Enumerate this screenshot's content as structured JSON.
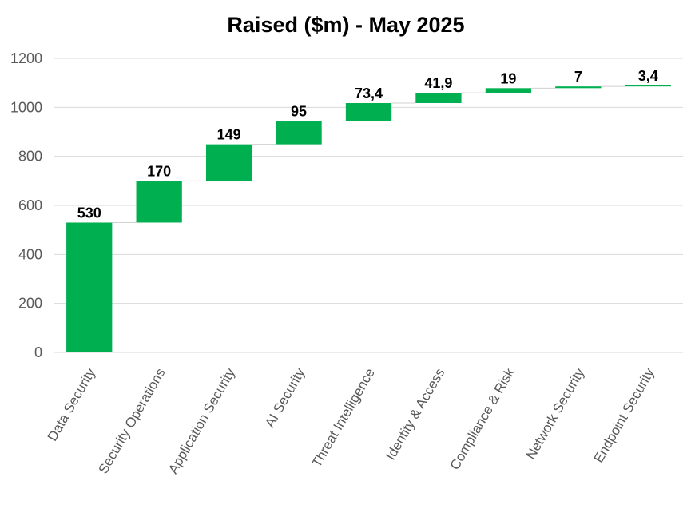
{
  "chart_data": {
    "type": "bar",
    "subtype": "waterfall",
    "title": "Raised ($m) - May 2025",
    "xlabel": "",
    "ylabel": "",
    "ylim": [
      0,
      1200
    ],
    "yticks": [
      0,
      200,
      400,
      600,
      800,
      1000,
      1200
    ],
    "grid": true,
    "legend": "none",
    "bar_color": "#00b050",
    "categories": [
      "Data Security",
      "Security Operations",
      "Application Security",
      "AI Security",
      "Threat Intelligence",
      "Identity & Access",
      "Compliance & Risk",
      "Network Security",
      "Endpoint Security"
    ],
    "values": [
      530,
      170,
      149,
      95,
      73.4,
      41.9,
      19,
      7,
      3.4
    ],
    "data_labels": [
      "530",
      "170",
      "149",
      "95",
      "73,4",
      "41,9",
      "19",
      "7",
      "3,4"
    ]
  }
}
